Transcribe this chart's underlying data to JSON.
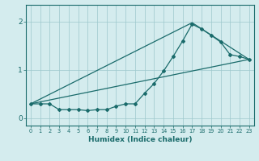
{
  "xlabel": "Humidex (Indice chaleur)",
  "bg_color": "#d4ecee",
  "grid_color": "#9dc8cc",
  "line_color": "#1a6b6b",
  "x_ticks": [
    0,
    1,
    2,
    3,
    4,
    5,
    6,
    7,
    8,
    9,
    10,
    11,
    12,
    13,
    14,
    15,
    16,
    17,
    18,
    19,
    20,
    21,
    22,
    23
  ],
  "line1_x": [
    0,
    1,
    2,
    3,
    4,
    5,
    6,
    7,
    8,
    9,
    10,
    11,
    12,
    13,
    14,
    15,
    16,
    17,
    18,
    19,
    20,
    21,
    22,
    23
  ],
  "line1_y": [
    0.3,
    0.3,
    0.3,
    0.18,
    0.18,
    0.18,
    0.16,
    0.18,
    0.18,
    0.25,
    0.3,
    0.3,
    0.52,
    0.72,
    0.98,
    1.28,
    1.6,
    1.95,
    1.85,
    1.72,
    1.58,
    1.32,
    1.28,
    1.22
  ],
  "line2_x": [
    0,
    23
  ],
  "line2_y": [
    0.3,
    1.22
  ],
  "line3_x": [
    0,
    17,
    23
  ],
  "line3_y": [
    0.3,
    1.98,
    1.22
  ],
  "ylim": [
    -0.15,
    2.35
  ],
  "xlim": [
    -0.5,
    23.5
  ],
  "yticks": [
    0,
    1,
    2
  ]
}
